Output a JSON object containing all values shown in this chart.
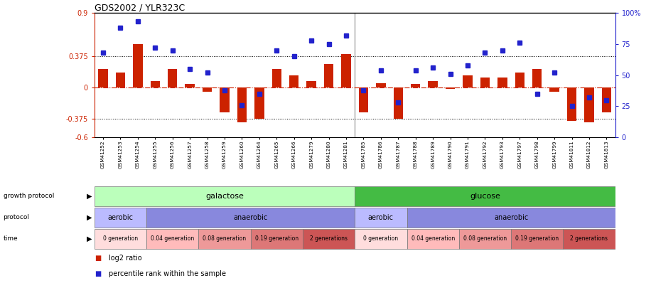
{
  "title": "GDS2002 / YLR323C",
  "samples": [
    "GSM41252",
    "GSM41253",
    "GSM41254",
    "GSM41255",
    "GSM41256",
    "GSM41257",
    "GSM41258",
    "GSM41259",
    "GSM41260",
    "GSM41264",
    "GSM41265",
    "GSM41266",
    "GSM41279",
    "GSM41280",
    "GSM41281",
    "GSM41785",
    "GSM41786",
    "GSM41787",
    "GSM41788",
    "GSM41789",
    "GSM41790",
    "GSM41791",
    "GSM41792",
    "GSM41793",
    "GSM41797",
    "GSM41798",
    "GSM41799",
    "GSM41811",
    "GSM41812",
    "GSM41813"
  ],
  "log2_ratio": [
    0.22,
    0.18,
    0.52,
    0.08,
    0.22,
    0.04,
    -0.05,
    -0.3,
    -0.42,
    -0.38,
    0.22,
    0.15,
    0.08,
    0.28,
    0.4,
    -0.3,
    0.05,
    -0.38,
    0.04,
    0.08,
    -0.02,
    0.15,
    0.12,
    0.12,
    0.18,
    0.22,
    -0.05,
    -0.4,
    -0.42,
    -0.3
  ],
  "percentile": [
    68,
    88,
    93,
    72,
    70,
    55,
    52,
    38,
    26,
    35,
    70,
    65,
    78,
    75,
    82,
    38,
    54,
    28,
    54,
    56,
    51,
    58,
    68,
    70,
    76,
    35,
    52,
    25,
    32,
    30
  ],
  "ylim_left": [
    -0.6,
    0.9
  ],
  "ylim_right": [
    0,
    100
  ],
  "left_ticks": [
    -0.6,
    -0.375,
    0,
    0.375,
    0.9
  ],
  "right_ticks": [
    0,
    25,
    50,
    75,
    100
  ],
  "dotted_lines": [
    0.375,
    -0.375
  ],
  "bar_color": "#CC2200",
  "dot_color": "#2222CC",
  "zero_line_color": "#CC2200",
  "galactose_color": "#BBFFBB",
  "glucose_color": "#44BB44",
  "aerobic_color": "#BBBBFF",
  "anaerobic_color": "#8888DD",
  "time_colors": [
    "#FFDDDD",
    "#FFBBBB",
    "#EE9999",
    "#DD7777",
    "#CC5555"
  ],
  "time_labels": [
    "0 generation",
    "0.04 generation",
    "0.08 generation",
    "0.19 generation",
    "2 generations"
  ]
}
